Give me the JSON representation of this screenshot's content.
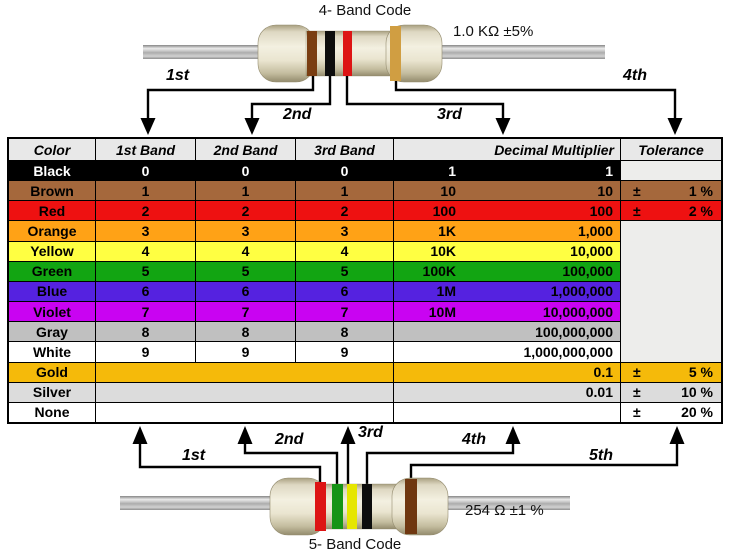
{
  "top_resistor": {
    "title": "4- Band Code",
    "value": "1.0 KΩ  ±5%",
    "band_labels": [
      "1st",
      "2nd",
      "3rd",
      "4th"
    ],
    "band_colors": [
      "brown",
      "black",
      "red",
      "gold"
    ]
  },
  "bottom_resistor": {
    "title": "5- Band Code",
    "value": "254 Ω  ±1 %",
    "band_labels": [
      "1st",
      "2nd",
      "3rd",
      "4th",
      "5th"
    ],
    "band_colors": [
      "red",
      "green",
      "yellow",
      "black",
      "brown"
    ]
  },
  "table": {
    "headers": [
      "Color",
      "1st Band",
      "2nd Band",
      "3rd Band",
      "Decimal Multiplier",
      "Tolerance"
    ],
    "empty_cell_color": "#ededeb",
    "rows": [
      {
        "name": "Black",
        "bg": "#000000",
        "fg": "#ffffff",
        "bands": [
          "0",
          "0",
          "0"
        ],
        "mult": {
          "prefix": "1",
          "value": "1"
        },
        "tol": {
          "type": "empty"
        }
      },
      {
        "name": "Brown",
        "bg": "#a5683c",
        "fg": "#000000",
        "bands": [
          "1",
          "1",
          "1"
        ],
        "mult": {
          "prefix": "10",
          "value": "10"
        },
        "tol": {
          "sign": "±",
          "value": "1 %"
        }
      },
      {
        "name": "Red",
        "bg": "#ee1111",
        "fg": "#000000",
        "bands": [
          "2",
          "2",
          "2"
        ],
        "mult": {
          "prefix": "100",
          "value": "100"
        },
        "tol": {
          "sign": "±",
          "value": "2 %"
        }
      },
      {
        "name": "Orange",
        "bg": "#ffa216",
        "fg": "#000000",
        "bands": [
          "3",
          "3",
          "3"
        ],
        "mult": {
          "prefix": "1K",
          "value": "1,000"
        },
        "tol": {
          "type": "merged-empty",
          "span": 7
        }
      },
      {
        "name": "Yellow",
        "bg": "#ffff42",
        "fg": "#000000",
        "bands": [
          "4",
          "4",
          "4"
        ],
        "mult": {
          "prefix": "10K",
          "value": "10,000"
        },
        "tol": null
      },
      {
        "name": "Green",
        "bg": "#12a512",
        "fg": "#000000",
        "bands": [
          "5",
          "5",
          "5"
        ],
        "mult": {
          "prefix": "100K",
          "value": "100,000"
        },
        "tol": null
      },
      {
        "name": "Blue",
        "bg": "#5522e0",
        "fg": "#000000",
        "bands": [
          "6",
          "6",
          "6"
        ],
        "mult": {
          "prefix": "1M",
          "value": "1,000,000"
        },
        "tol": null
      },
      {
        "name": "Violet",
        "bg": "#c903f2",
        "fg": "#000000",
        "bands": [
          "7",
          "7",
          "7"
        ],
        "mult": {
          "prefix": "10M",
          "value": "10,000,000"
        },
        "tol": null
      },
      {
        "name": "Gray",
        "bg": "#c0c0c0",
        "fg": "#000000",
        "bands": [
          "8",
          "8",
          "8"
        ],
        "mult": {
          "prefix": "",
          "value": "100,000,000"
        },
        "tol": null
      },
      {
        "name": "White",
        "bg": "#ffffff",
        "fg": "#000000",
        "bands": [
          "9",
          "9",
          "9"
        ],
        "mult": {
          "prefix": "",
          "value": "1,000,000,000"
        },
        "tol": null
      },
      {
        "name": "Gold",
        "bg": "#f5ba0a",
        "fg": "#000000",
        "bands": null,
        "mult": {
          "prefix": "",
          "value": "0.1"
        },
        "tol": {
          "sign": "±",
          "value": "5 %"
        }
      },
      {
        "name": "Silver",
        "bg": "#dcdcdc",
        "fg": "#000000",
        "bands": null,
        "mult": {
          "prefix": "",
          "value": "0.01"
        },
        "tol": {
          "sign": "±",
          "value": "10 %"
        }
      },
      {
        "name": "None",
        "bg": "#ffffff",
        "fg": "#000000",
        "bands": null,
        "mult": {
          "prefix": "",
          "value": ""
        },
        "tol": {
          "sign": "±",
          "value": "20 %"
        }
      }
    ]
  }
}
